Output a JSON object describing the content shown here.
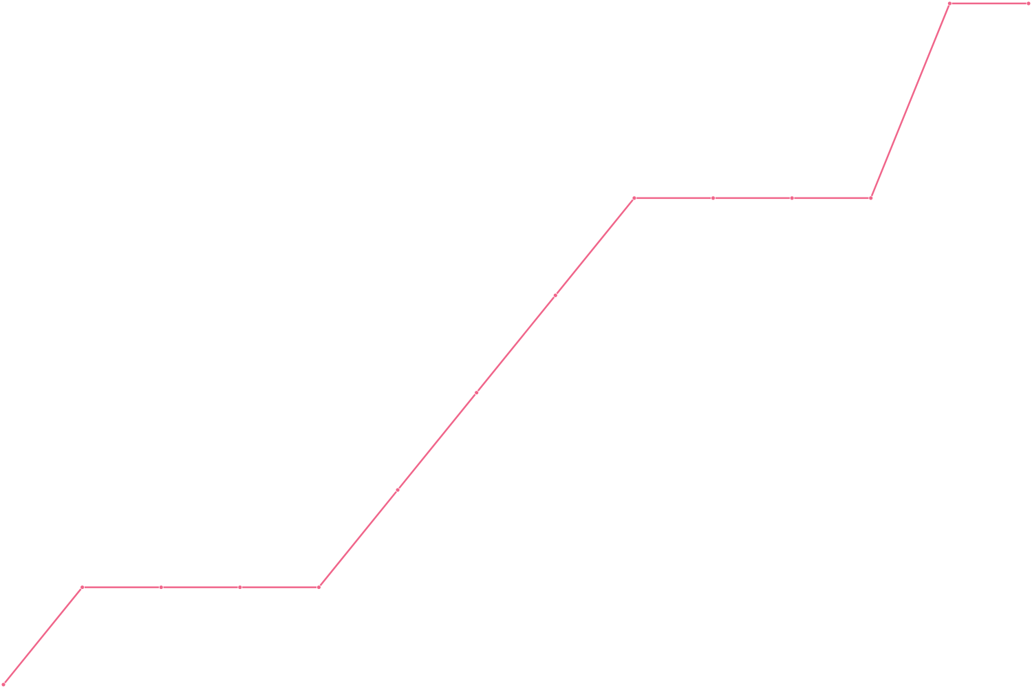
{
  "chart_data": {
    "type": "line",
    "title": "",
    "xlabel": "",
    "ylabel": "",
    "grid": false,
    "legend": "none",
    "x": [
      0,
      1,
      2,
      3,
      4,
      5,
      6,
      7,
      8,
      9,
      10,
      11,
      12,
      13
    ],
    "xlim": [
      0,
      13
    ],
    "ylim": [
      0,
      7
    ],
    "series": [
      {
        "values": [
          0,
          1,
          1,
          1,
          1,
          2,
          3,
          4,
          5,
          5,
          5,
          5,
          7,
          7
        ],
        "color": "#f0658a"
      }
    ]
  }
}
